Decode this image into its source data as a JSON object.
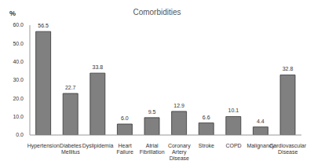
{
  "chart_data": {
    "type": "bar",
    "title": "Comorbidities",
    "ylabel": "%",
    "categories": [
      "Hypertension",
      "Diabetes Mellitus",
      "Dyslipidemia",
      "Heart Failure",
      "Atrial Fibrillation",
      "Coronary Artery Disease",
      "Stroke",
      "COPD",
      "Malignancy",
      "Cardiovascular Disease"
    ],
    "values": [
      56.5,
      22.7,
      33.8,
      6.0,
      9.5,
      12.9,
      6.6,
      10.1,
      4.4,
      32.8
    ],
    "value_labels": [
      "56.5",
      "22.7",
      "33.8",
      "6.0",
      "9.5",
      "12.9",
      "6.6",
      "10.1",
      "4.4",
      "32.8"
    ],
    "data_labels": true,
    "color": "#808080",
    "ylim": [
      0,
      60
    ],
    "yticks": [
      {
        "value": 0,
        "label": "0.0"
      },
      {
        "value": 10,
        "label": "10.0"
      },
      {
        "value": 20,
        "label": "20.0"
      },
      {
        "value": 30,
        "label": "30.0"
      },
      {
        "value": 40,
        "label": "40.0"
      },
      {
        "value": 50,
        "label": "50.0"
      },
      {
        "value": 60,
        "label": "60.0"
      }
    ],
    "grid": false
  }
}
